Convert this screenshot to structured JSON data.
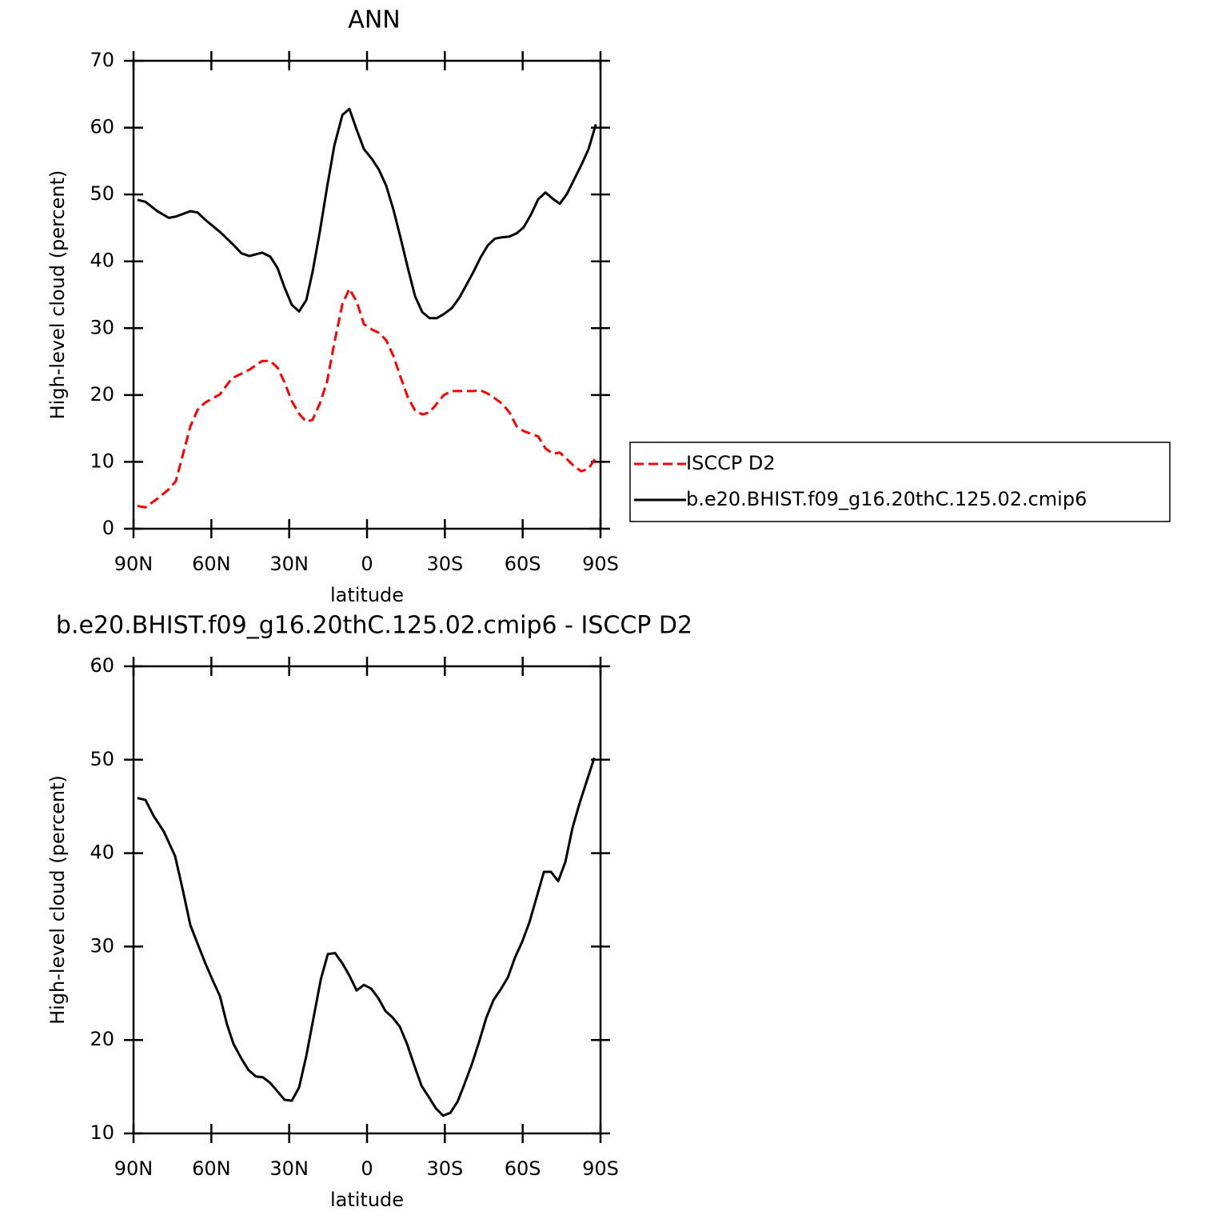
{
  "chart_data": [
    {
      "type": "line",
      "title": "ANN",
      "xlabel": "latitude",
      "ylabel": "High-level cloud (percent)",
      "legend": "right",
      "x": [
        88.5,
        85.4,
        80.8,
        76.4,
        73.7,
        68.1,
        65.3,
        62.3,
        56.7,
        52.1,
        48.4,
        45.3,
        40.4,
        37.3,
        34.5,
        31.8,
        29.0,
        26.2,
        23.4,
        21.0,
        18.2,
        15.4,
        12.6,
        9.5,
        6.8,
        4.0,
        1.2,
        -1.9,
        -4.6,
        -7.4,
        -10.2,
        -13.0,
        -15.8,
        -18.5,
        -21.3,
        -24.1,
        -26.9,
        -29.6,
        -32.7,
        -35.5,
        -38.2,
        -41.0,
        -43.8,
        -46.6,
        -49.3,
        -52.1,
        -54.9,
        -57.7,
        -60.4,
        -63.2,
        -66.0,
        -68.8,
        -71.8,
        -74.3,
        -77.1,
        -79.9,
        -82.6,
        -85.4,
        -88.2
      ],
      "series": [
        {
          "name": "ISCCP D2",
          "color": "#ff0000",
          "linestyle": "dashed",
          "values": [
            3.4,
            3.2,
            4.5,
            5.9,
            7.1,
            15.3,
            17.8,
            18.9,
            20.1,
            22.5,
            23.2,
            23.8,
            25.1,
            25.1,
            24.1,
            21.9,
            19.1,
            17.2,
            16.0,
            16.3,
            18.7,
            22.0,
            27.8,
            33.6,
            35.9,
            34.0,
            30.6,
            29.8,
            29.3,
            28.2,
            25.8,
            22.6,
            19.6,
            17.7,
            17.1,
            17.4,
            18.7,
            20.0,
            20.6,
            20.6,
            20.6,
            20.6,
            20.7,
            20.2,
            19.5,
            18.7,
            17.4,
            15.3,
            14.6,
            14.2,
            13.8,
            12.0,
            11.2,
            11.4,
            10.4,
            9.3,
            8.6,
            9.0,
            10.6
          ]
        },
        {
          "name": "b.e20.BHIST.f09_g16.20thC.125.02.cmip6",
          "color": "#000000",
          "linestyle": "solid",
          "values": [
            49.2,
            48.9,
            47.5,
            46.5,
            46.7,
            47.5,
            47.3,
            46.2,
            44.4,
            42.7,
            41.2,
            40.8,
            41.3,
            40.7,
            39.0,
            36.1,
            33.5,
            32.5,
            34.2,
            38.4,
            44.4,
            51.1,
            57.3,
            61.9,
            62.8,
            59.7,
            56.8,
            55.3,
            53.7,
            51.3,
            47.7,
            43.4,
            38.9,
            34.8,
            32.4,
            31.5,
            31.5,
            32.1,
            33.0,
            34.5,
            36.4,
            38.4,
            40.6,
            42.4,
            43.4,
            43.6,
            43.7,
            44.2,
            45.1,
            47.0,
            49.3,
            50.3,
            49.3,
            48.6,
            50.1,
            52.3,
            54.4,
            56.8,
            60.5
          ]
        }
      ],
      "xlim": [
        90,
        -90
      ],
      "xticks": [
        {
          "value": 90,
          "label": "90N"
        },
        {
          "value": 60,
          "label": "60N"
        },
        {
          "value": 30,
          "label": "30N"
        },
        0,
        {
          "value": -30,
          "label": "30S"
        },
        {
          "value": -60,
          "label": "60S"
        },
        {
          "value": -90,
          "label": "90S"
        }
      ],
      "ylim": [
        0,
        70
      ],
      "yticks": [
        0,
        10,
        20,
        30,
        40,
        50,
        60,
        70
      ]
    },
    {
      "type": "line",
      "title": "b.e20.BHIST.f09_g16.20thC.125.02.cmip6 - ISCCP D2",
      "xlabel": "latitude",
      "ylabel": "High-level cloud (percent)",
      "x": [
        88.5,
        85.4,
        82.3,
        78.3,
        74.0,
        71.2,
        68.1,
        65.3,
        62.3,
        59.5,
        56.7,
        54.0,
        51.5,
        48.4,
        45.7,
        42.9,
        40.1,
        37.3,
        34.5,
        31.8,
        29.0,
        26.2,
        23.4,
        20.6,
        17.8,
        15.1,
        12.3,
        9.5,
        6.8,
        4.0,
        1.2,
        -1.6,
        -4.3,
        -7.1,
        -9.9,
        -12.7,
        -15.4,
        -18.2,
        -21.0,
        -23.8,
        -26.5,
        -29.3,
        -32.1,
        -34.9,
        -37.6,
        -40.4,
        -43.2,
        -46.0,
        -48.8,
        -51.5,
        -54.3,
        -57.0,
        -59.8,
        -62.6,
        -65.4,
        -68.2,
        -70.9,
        -73.7,
        -76.5,
        -79.2,
        -82.0,
        -84.8,
        -87.6
      ],
      "series": [
        {
          "color": "#000000",
          "linestyle": "solid",
          "values": [
            45.9,
            45.7,
            44.0,
            42.3,
            39.7,
            36.3,
            32.3,
            30.3,
            28.2,
            26.4,
            24.7,
            21.7,
            19.6,
            18.0,
            16.8,
            16.1,
            16.0,
            15.4,
            14.5,
            13.6,
            13.5,
            14.9,
            18.3,
            22.4,
            26.5,
            29.2,
            29.3,
            28.2,
            26.9,
            25.3,
            25.9,
            25.5,
            24.5,
            23.1,
            22.4,
            21.4,
            19.6,
            17.3,
            15.1,
            13.9,
            12.7,
            11.9,
            12.2,
            13.4,
            15.3,
            17.4,
            19.8,
            22.4,
            24.3,
            25.4,
            26.7,
            28.8,
            30.5,
            32.6,
            35.3,
            38.0,
            38.0,
            37.0,
            39.1,
            42.7,
            45.4,
            47.8,
            50.2
          ]
        }
      ],
      "xlim": [
        90,
        -90
      ],
      "xticks": [
        {
          "value": 90,
          "label": "90N"
        },
        {
          "value": 60,
          "label": "60N"
        },
        {
          "value": 30,
          "label": "30N"
        },
        0,
        {
          "value": -30,
          "label": "30S"
        },
        {
          "value": -60,
          "label": "60S"
        },
        {
          "value": -90,
          "label": "90S"
        }
      ],
      "ylim": [
        10,
        60
      ],
      "yticks": [
        10,
        20,
        30,
        40,
        50,
        60
      ]
    }
  ]
}
